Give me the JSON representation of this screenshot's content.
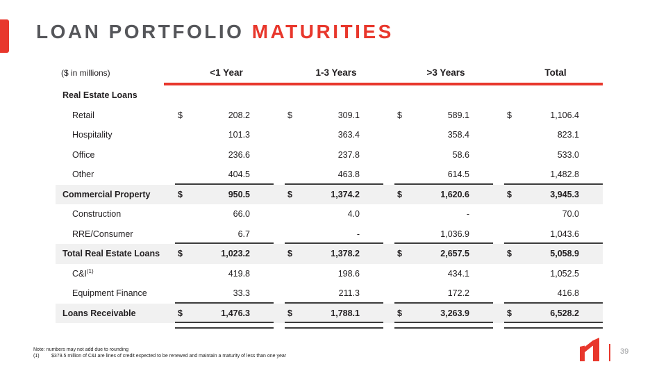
{
  "header": {
    "title_primary": "LOAN PORTFOLIO ",
    "title_accent": "MATURITIES"
  },
  "table": {
    "unit_label": "($ in millions)",
    "currency_symbol": "$",
    "columns": [
      "<1 Year",
      "1-3 Years",
      ">3 Years",
      "Total"
    ],
    "rows": [
      {
        "label": "Real Estate Loans",
        "type": "section"
      },
      {
        "label": "Retail",
        "type": "item",
        "dollar": true,
        "values": [
          "208.2",
          "309.1",
          "589.1",
          "1,106.4"
        ]
      },
      {
        "label": "Hospitality",
        "type": "item",
        "values": [
          "101.3",
          "363.4",
          "358.4",
          "823.1"
        ]
      },
      {
        "label": "Office",
        "type": "item",
        "values": [
          "236.6",
          "237.8",
          "58.6",
          "533.0"
        ]
      },
      {
        "label": "Other",
        "type": "item",
        "values": [
          "404.5",
          "463.8",
          "614.5",
          "1,482.8"
        ]
      },
      {
        "label": "Commercial Property",
        "type": "subtotal",
        "dollar": true,
        "values": [
          "950.5",
          "1,374.2",
          "1,620.6",
          "3,945.3"
        ]
      },
      {
        "label": "Construction",
        "type": "item",
        "values": [
          "66.0",
          "4.0",
          "-",
          "70.0"
        ]
      },
      {
        "label": "RRE/Consumer",
        "type": "item",
        "values": [
          "6.7",
          "-",
          "1,036.9",
          "1,043.6"
        ]
      },
      {
        "label": "Total Real Estate Loans",
        "type": "subtotal",
        "dollar": true,
        "values": [
          "1,023.2",
          "1,378.2",
          "2,657.5",
          "5,058.9"
        ]
      },
      {
        "label": "C&I",
        "sup": "(1)",
        "type": "item",
        "values": [
          "419.8",
          "198.6",
          "434.1",
          "1,052.5"
        ]
      },
      {
        "label": "Equipment Finance",
        "type": "item",
        "values": [
          "33.3",
          "211.3",
          "172.2",
          "416.8"
        ]
      },
      {
        "label": "Loans Receivable",
        "type": "total",
        "dollar": true,
        "values": [
          "1,476.3",
          "1,788.1",
          "3,263.9",
          "6,528.2"
        ]
      }
    ]
  },
  "footnotes": {
    "note": "Note: numbers may not add due to rounding",
    "item1_marker": "(1)",
    "item1_text": "$379.5 million of C&I are lines of credit expected to be renewed and maintain a maturity of less than one year"
  },
  "footer": {
    "page_number": "39"
  },
  "colors": {
    "accent_red": "#E8372C",
    "title_gray": "#55565A",
    "text_dark": "#232022",
    "row_band": "#F1F1F1",
    "rule_dark": "#3C3C3C",
    "page_num_gray": "#97999B"
  }
}
